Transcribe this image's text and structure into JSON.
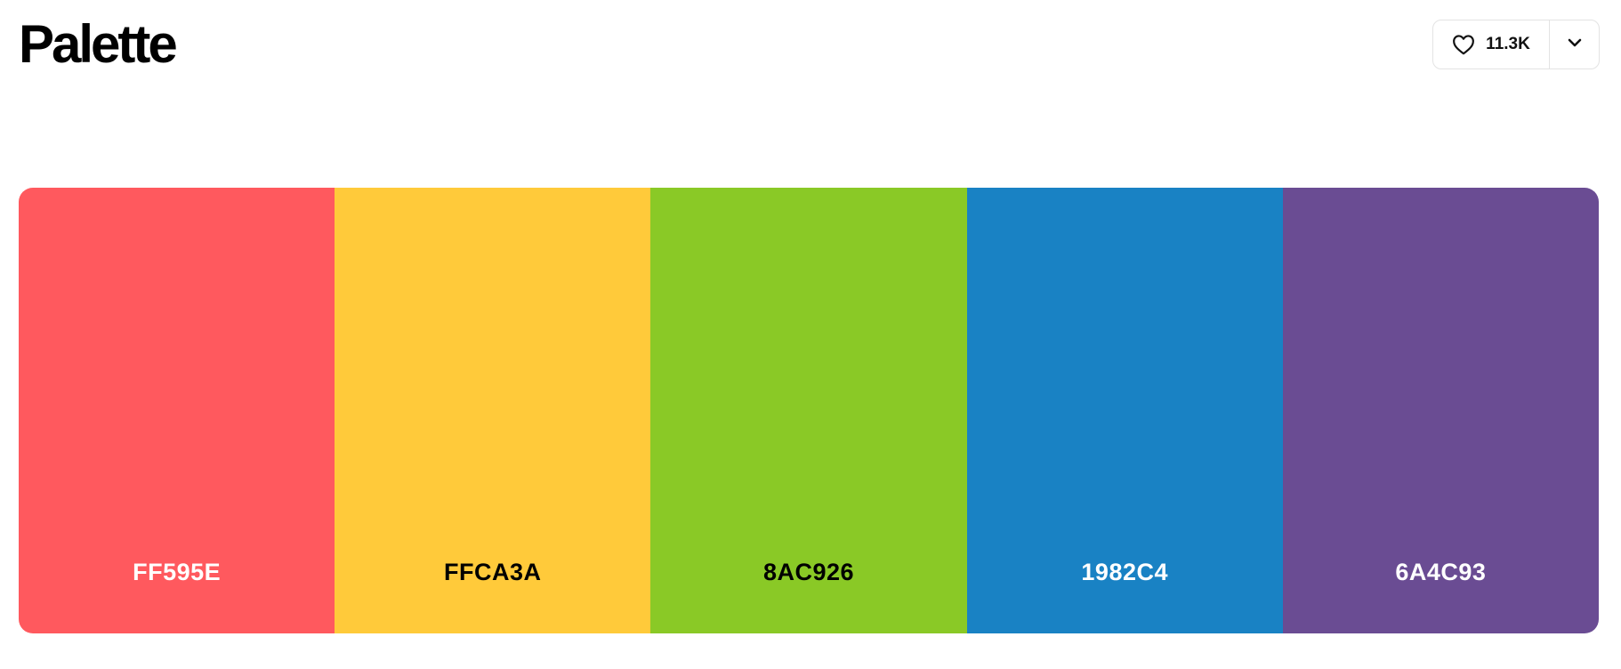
{
  "header": {
    "title": "Palette",
    "like_count": "11.3K",
    "icons": {
      "like": "heart-icon",
      "more": "chevron-down-icon"
    }
  },
  "palette": {
    "colors": [
      {
        "hex": "FF595E",
        "color": "#FF595E",
        "text_color": "#ffffff"
      },
      {
        "hex": "FFCA3A",
        "color": "#FFCA3A",
        "text_color": "#000000"
      },
      {
        "hex": "8AC926",
        "color": "#8AC926",
        "text_color": "#000000"
      },
      {
        "hex": "1982C4",
        "color": "#1982C4",
        "text_color": "#ffffff"
      },
      {
        "hex": "6A4C93",
        "color": "#6A4C93",
        "text_color": "#ffffff"
      }
    ]
  }
}
